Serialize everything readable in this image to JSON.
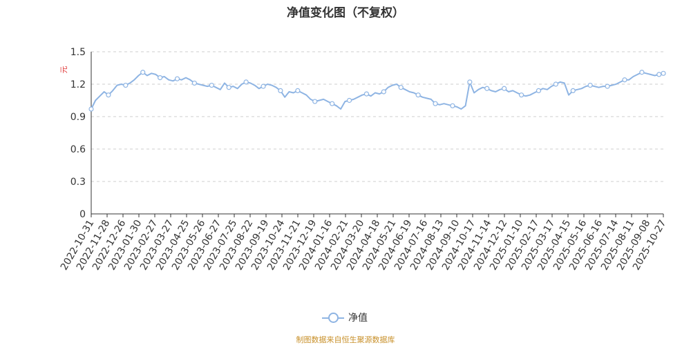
{
  "chart_data": {
    "type": "line",
    "title": "净值变化图（不复权）",
    "y_unit": "元",
    "ylim": [
      0,
      1.5
    ],
    "y_ticks": [
      "0",
      "0.3",
      "0.6",
      "0.9",
      "1.2",
      "1.5"
    ],
    "grid": true,
    "legend_position": "bottom",
    "x_ticks": [
      "2022-10-31",
      "2022-11-28",
      "2022-12-26",
      "2023-01-30",
      "2023-02-27",
      "2023-03-27",
      "2023-04-25",
      "2023-05-26",
      "2023-06-27",
      "2023-07-25",
      "2023-08-22",
      "2023-09-19",
      "2023-10-24",
      "2023-11-21",
      "2023-12-19",
      "2024-01-16",
      "2024-02-21",
      "2024-03-20",
      "2024-04-18",
      "2024-05-21",
      "2024-06-19",
      "2024-07-16",
      "2024-08-13",
      "2024-09-10",
      "2024-10-17",
      "2024-11-14",
      "2024-12-12",
      "2025-01-10",
      "2025-02-17",
      "2025-03-17",
      "2025-04-15",
      "2025-05-16",
      "2025-06-16",
      "2025-07-14",
      "2025-08-11",
      "2025-09-08",
      "2025-10-27"
    ],
    "series": [
      {
        "name": "净值",
        "color": "#8eb4e3",
        "values": [
          0.97,
          1.05,
          1.09,
          1.13,
          1.1,
          1.14,
          1.19,
          1.2,
          1.19,
          1.21,
          1.24,
          1.28,
          1.31,
          1.28,
          1.3,
          1.29,
          1.26,
          1.27,
          1.24,
          1.23,
          1.25,
          1.24,
          1.26,
          1.24,
          1.21,
          1.2,
          1.19,
          1.18,
          1.19,
          1.17,
          1.15,
          1.21,
          1.17,
          1.18,
          1.16,
          1.2,
          1.22,
          1.21,
          1.19,
          1.16,
          1.18,
          1.2,
          1.19,
          1.17,
          1.14,
          1.08,
          1.13,
          1.12,
          1.14,
          1.12,
          1.1,
          1.06,
          1.04,
          1.05,
          1.06,
          1.04,
          1.02,
          1.0,
          0.97,
          1.04,
          1.05,
          1.06,
          1.08,
          1.1,
          1.11,
          1.09,
          1.12,
          1.11,
          1.13,
          1.17,
          1.19,
          1.2,
          1.17,
          1.15,
          1.13,
          1.12,
          1.1,
          1.08,
          1.07,
          1.06,
          1.02,
          1.01,
          1.02,
          1.01,
          1.0,
          0.99,
          0.97,
          1.0,
          1.22,
          1.12,
          1.15,
          1.17,
          1.16,
          1.14,
          1.13,
          1.15,
          1.16,
          1.13,
          1.14,
          1.12,
          1.1,
          1.09,
          1.1,
          1.12,
          1.14,
          1.16,
          1.15,
          1.18,
          1.2,
          1.22,
          1.21,
          1.1,
          1.14,
          1.15,
          1.16,
          1.18,
          1.19,
          1.18,
          1.17,
          1.18,
          1.18,
          1.19,
          1.2,
          1.22,
          1.24,
          1.24,
          1.27,
          1.29,
          1.31,
          1.3,
          1.29,
          1.28,
          1.29,
          1.3
        ]
      }
    ]
  },
  "legend": {
    "label": "净值"
  },
  "source": "制图数据来自恒生聚源数据库"
}
